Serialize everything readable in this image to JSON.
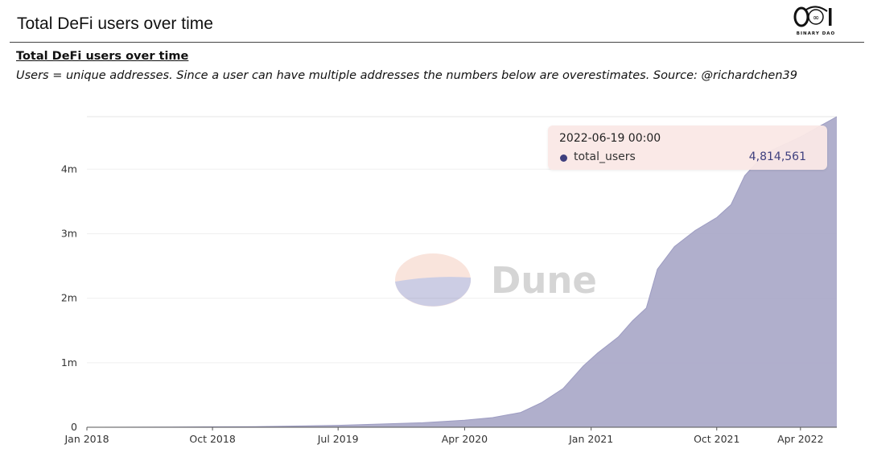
{
  "header": {
    "title": "Total DeFi users over time",
    "logo_text": "BINARY DAO",
    "logo_mark": "0∞1"
  },
  "watermark": {
    "text": "Dune"
  },
  "chart_data": {
    "type": "area",
    "title": "Total DeFi users over time",
    "subtitle": "Users = unique addresses. Since a user can have multiple addresses the numbers below are overestimates. Source: @richardchen39",
    "xlabel": "",
    "ylabel": "",
    "x_tick_labels": [
      "Jan 2018",
      "Oct 2018",
      "Jul 2019",
      "Apr 2020",
      "Jan 2021",
      "Oct 2021",
      "Apr 2022"
    ],
    "x_ticks": [
      "2018-01-01",
      "2018-10-01",
      "2019-07-01",
      "2020-04-01",
      "2021-01-01",
      "2021-10-01",
      "2022-04-01"
    ],
    "y_tick_labels": [
      "0",
      "1m",
      "2m",
      "3m",
      "4m"
    ],
    "y_ticks": [
      0,
      1000000,
      2000000,
      3000000,
      4000000
    ],
    "xlim": [
      "2018-01-01",
      "2022-06-19"
    ],
    "ylim": [
      0,
      4814561
    ],
    "grid": true,
    "color": "#a9a8c8",
    "series": [
      {
        "name": "total_users",
        "points": [
          [
            "2018-01-01",
            0
          ],
          [
            "2018-07-01",
            3000
          ],
          [
            "2019-01-01",
            10000
          ],
          [
            "2019-07-01",
            30000
          ],
          [
            "2019-10-01",
            50000
          ],
          [
            "2020-01-01",
            70000
          ],
          [
            "2020-04-01",
            110000
          ],
          [
            "2020-06-01",
            150000
          ],
          [
            "2020-08-01",
            230000
          ],
          [
            "2020-09-15",
            380000
          ],
          [
            "2020-11-01",
            600000
          ],
          [
            "2020-12-15",
            950000
          ],
          [
            "2021-01-15",
            1150000
          ],
          [
            "2021-03-01",
            1400000
          ],
          [
            "2021-04-01",
            1650000
          ],
          [
            "2021-05-01",
            1850000
          ],
          [
            "2021-05-25",
            2450000
          ],
          [
            "2021-07-01",
            2800000
          ],
          [
            "2021-08-15",
            3050000
          ],
          [
            "2021-10-01",
            3250000
          ],
          [
            "2021-11-01",
            3450000
          ],
          [
            "2021-12-01",
            3900000
          ],
          [
            "2022-01-15",
            4250000
          ],
          [
            "2022-04-01",
            4500000
          ],
          [
            "2022-06-19",
            4814561
          ]
        ]
      }
    ],
    "tooltip": {
      "date": "2022-06-19 00:00",
      "series": "total_users",
      "value": "4,814,561"
    }
  }
}
